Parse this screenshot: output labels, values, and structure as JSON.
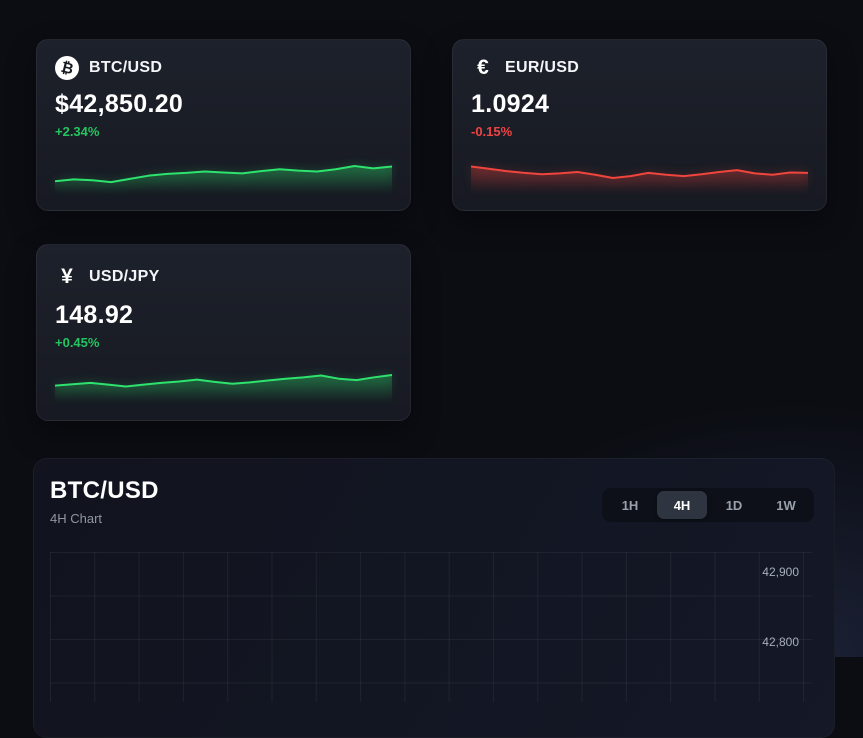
{
  "colors": {
    "up_text": "#22c55e",
    "down_text": "#ef4444",
    "up_line": "#2ee26e",
    "down_line": "#f0453d"
  },
  "cards": [
    {
      "pair": "BTC/USD",
      "icon": "bitcoin-icon",
      "icon_glyph": "₿",
      "price": "$42,850.20",
      "change": "+2.34%",
      "direction": "up",
      "sparkline": [
        30,
        34,
        32,
        28,
        35,
        42,
        46,
        48,
        51,
        49,
        47,
        52,
        56,
        53,
        51,
        56,
        63,
        58,
        62
      ]
    },
    {
      "pair": "EUR/USD",
      "icon": "euro-icon",
      "icon_glyph": "€",
      "price": "1.0924",
      "change": "-0.15%",
      "direction": "down",
      "sparkline": [
        62,
        57,
        52,
        48,
        45,
        47,
        50,
        44,
        37,
        41,
        48,
        44,
        41,
        45,
        50,
        54,
        47,
        44,
        49,
        48
      ]
    },
    {
      "pair": "USD/JPY",
      "icon": "yen-icon",
      "icon_glyph": "¥",
      "price": "148.92",
      "change": "+0.45%",
      "direction": "up",
      "sparkline": [
        40,
        43,
        46,
        42,
        38,
        42,
        46,
        49,
        53,
        48,
        44,
        47,
        51,
        55,
        58,
        62,
        55,
        52,
        58,
        63
      ]
    }
  ],
  "chart_panel": {
    "title": "BTC/USD",
    "subtitle": "4H Chart",
    "timeframes": [
      {
        "label": "1H",
        "selected": false
      },
      {
        "label": "4H",
        "selected": true
      },
      {
        "label": "1D",
        "selected": false
      },
      {
        "label": "1W",
        "selected": false
      }
    ],
    "y_axis_labels": [
      "42,900",
      "42,800"
    ]
  },
  "chart_data": [
    {
      "type": "line",
      "title": "BTC/USD sparkline",
      "trend": "up",
      "values": [
        30,
        34,
        32,
        28,
        35,
        42,
        46,
        48,
        51,
        49,
        47,
        52,
        56,
        53,
        51,
        56,
        63,
        58,
        62
      ]
    },
    {
      "type": "line",
      "title": "EUR/USD sparkline",
      "trend": "down",
      "values": [
        62,
        57,
        52,
        48,
        45,
        47,
        50,
        44,
        37,
        41,
        48,
        44,
        41,
        45,
        50,
        54,
        47,
        44,
        49,
        48
      ]
    },
    {
      "type": "line",
      "title": "USD/JPY sparkline",
      "trend": "up",
      "values": [
        40,
        43,
        46,
        42,
        38,
        42,
        46,
        49,
        53,
        48,
        44,
        47,
        51,
        55,
        58,
        62,
        55,
        52,
        58,
        63
      ]
    },
    {
      "type": "line",
      "title": "BTC/USD 4H Chart",
      "grid": true,
      "y_tick_labels": [
        "42,900",
        "42,800"
      ],
      "values": []
    }
  ]
}
